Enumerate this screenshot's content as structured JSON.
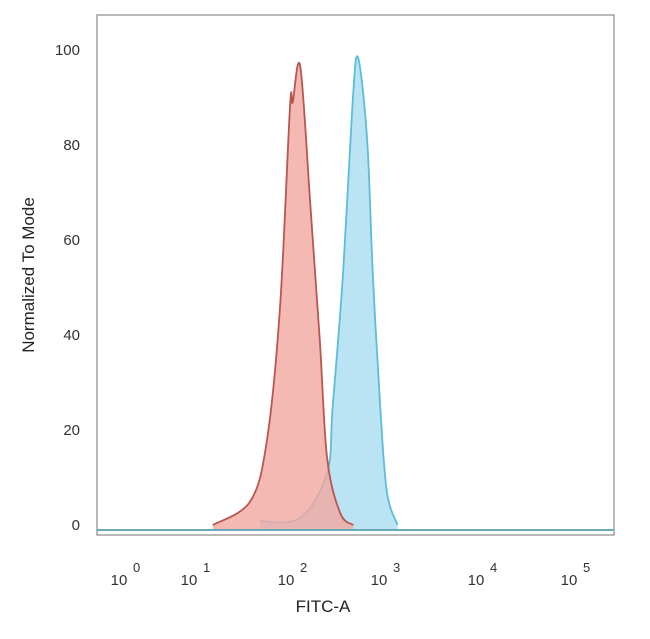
{
  "chart_data": {
    "type": "area",
    "title": "",
    "xlabel": "FITC-A",
    "ylabel": "Normalized To Mode",
    "x_scale": "log",
    "xlim": [
      0.43,
      275000
    ],
    "ylim": [
      -2,
      107
    ],
    "grid": false,
    "legend": "none",
    "x_ticks": [
      {
        "base": "10",
        "exp": "0",
        "value": 1
      },
      {
        "base": "10",
        "exp": "1",
        "value": 10
      },
      {
        "base": "10",
        "exp": "2",
        "value": 100
      },
      {
        "base": "10",
        "exp": "3",
        "value": 1000
      },
      {
        "base": "10",
        "exp": "4",
        "value": 10000
      },
      {
        "base": "10",
        "exp": "5",
        "value": 100000
      }
    ],
    "y_ticks": [
      "0",
      "20",
      "40",
      "60",
      "80",
      "100"
    ],
    "series": [
      {
        "color_fill": "#f3a7a1",
        "color_line": "#b9564f",
        "x": [
          16,
          39,
          58,
          79,
          100,
          107,
          129,
          166,
          209,
          251,
          347,
          479
        ],
        "y": [
          0,
          5,
          18,
          46,
          88,
          89,
          96.5,
          67,
          39,
          14,
          2.5,
          0
        ]
      },
      {
        "color_fill": "#a9dcf1",
        "color_line": "#5cbdd6",
        "x": [
          49,
          129,
          251,
          288,
          372,
          468,
          537,
          676,
          776,
          933,
          1096,
          1413
        ],
        "y": [
          0.8,
          1.5,
          11,
          25,
          53,
          88,
          98.5,
          81,
          53,
          25,
          7,
          0
        ]
      }
    ],
    "colors": {
      "frame": "#8a8a8a",
      "baseline": "#6aa9b8"
    }
  }
}
